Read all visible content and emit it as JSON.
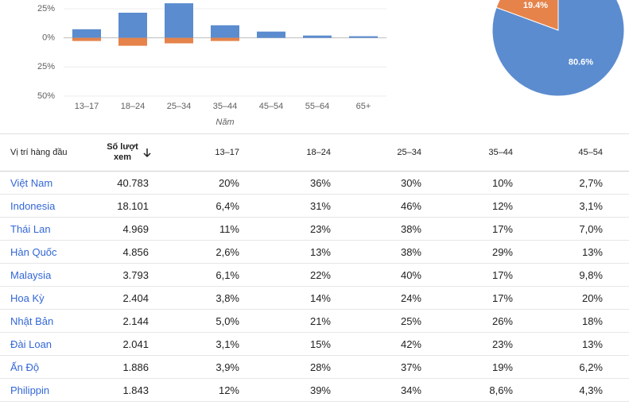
{
  "chart_data": [
    {
      "type": "bar",
      "x_label": "Năm",
      "categories": [
        "13–17",
        "18–24",
        "25–34",
        "35–44",
        "45–54",
        "55–64",
        "65+"
      ],
      "series": [
        {
          "color": "#5b8ccf",
          "values": [
            7.4,
            21.6,
            29.7,
            10.8,
            5.4,
            2,
            1.4
          ]
        },
        {
          "color": "#e5834a",
          "values": [
            -2.7,
            -6.8,
            -4.7,
            -2.7,
            0,
            0,
            0
          ]
        }
      ],
      "ylim": [
        -50,
        32.5
      ],
      "yticks": [
        {
          "value": -50,
          "label": "50%"
        },
        {
          "value": -25,
          "label": "25%"
        },
        {
          "value": 0,
          "label": "0%"
        },
        {
          "value": 25,
          "label": "25%"
        }
      ],
      "grid": true
    },
    {
      "type": "pie",
      "values": [
        80.6,
        19.4
      ],
      "value_labels": [
        "80.6%",
        "19.4%"
      ],
      "colors": [
        "#5b8ccf",
        "#e5834a"
      ]
    }
  ],
  "table": {
    "header": [
      "Vị trí hàng đầu",
      "Số lượt xem",
      "13–17",
      "18–24",
      "25–34",
      "35–44",
      "45–54"
    ],
    "rows": [
      [
        "Việt Nam",
        "40.783",
        "20%",
        "36%",
        "30%",
        "10%",
        "2,7%"
      ],
      [
        "Indonesia",
        "18.101",
        "6,4%",
        "31%",
        "46%",
        "12%",
        "3,1%"
      ],
      [
        "Thái Lan",
        "4.969",
        "11%",
        "23%",
        "38%",
        "17%",
        "7,0%"
      ],
      [
        "Hàn Quốc",
        "4.856",
        "2,6%",
        "13%",
        "38%",
        "29%",
        "13%"
      ],
      [
        "Malaysia",
        "3.793",
        "6,1%",
        "22%",
        "40%",
        "17%",
        "9,8%"
      ],
      [
        "Hoa Kỳ",
        "2.404",
        "3,8%",
        "14%",
        "24%",
        "17%",
        "20%"
      ],
      [
        "Nhật Bản",
        "2.144",
        "5,0%",
        "21%",
        "25%",
        "26%",
        "18%"
      ],
      [
        "Đài Loan",
        "2.041",
        "3,1%",
        "15%",
        "42%",
        "23%",
        "13%"
      ],
      [
        "Ấn Độ",
        "1.886",
        "3,9%",
        "28%",
        "37%",
        "19%",
        "6,2%"
      ],
      [
        "Philippin",
        "1.843",
        "12%",
        "39%",
        "34%",
        "8,6%",
        "4,3%"
      ]
    ]
  }
}
